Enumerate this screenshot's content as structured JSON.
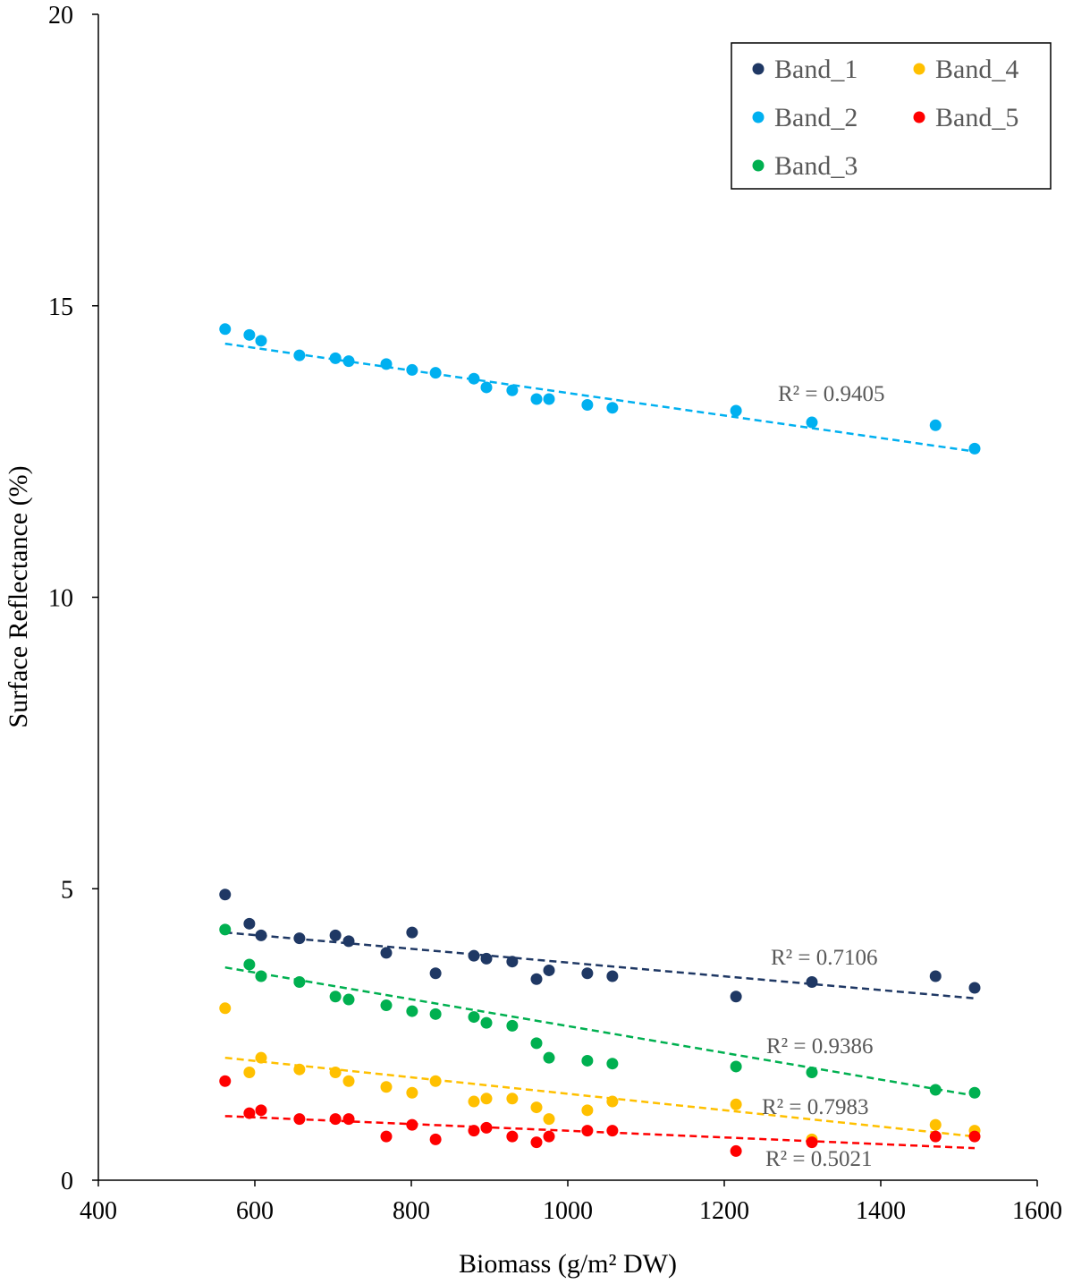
{
  "chart_data": {
    "type": "scatter",
    "title": "",
    "xlabel": "Biomass (g/m² DW)",
    "ylabel": "Surface Reflectance (%)",
    "xlim": [
      400,
      1600
    ],
    "ylim": [
      0,
      20
    ],
    "xticks": [
      400,
      600,
      800,
      1000,
      1200,
      1400,
      1600
    ],
    "yticks": [
      0,
      5,
      10,
      15,
      20
    ],
    "grid": false,
    "legend_position": "top-right",
    "trendline": "linear, dashed",
    "series": [
      {
        "name": "Band_1",
        "color": "#1F3864",
        "r2_label": "R² = 0.7106",
        "trend": [
          [
            562,
            4.25
          ],
          [
            1520,
            3.12
          ]
        ],
        "points": [
          [
            562,
            4.9
          ],
          [
            593,
            4.4
          ],
          [
            608,
            4.2
          ],
          [
            657,
            4.15
          ],
          [
            703,
            4.2
          ],
          [
            720,
            4.1
          ],
          [
            768,
            3.9
          ],
          [
            801,
            4.25
          ],
          [
            831,
            3.55
          ],
          [
            880,
            3.85
          ],
          [
            896,
            3.8
          ],
          [
            929,
            3.75
          ],
          [
            960,
            3.45
          ],
          [
            976,
            3.6
          ],
          [
            1025,
            3.55
          ],
          [
            1057,
            3.5
          ],
          [
            1215,
            3.15
          ],
          [
            1312,
            3.4
          ],
          [
            1470,
            3.5
          ],
          [
            1520,
            3.3
          ]
        ]
      },
      {
        "name": "Band_2",
        "color": "#00B0F0",
        "r2_label": "R² = 0.9405",
        "trend": [
          [
            562,
            14.35
          ],
          [
            1520,
            12.5
          ]
        ],
        "points": [
          [
            562,
            14.6
          ],
          [
            593,
            14.5
          ],
          [
            608,
            14.4
          ],
          [
            657,
            14.15
          ],
          [
            703,
            14.1
          ],
          [
            720,
            14.05
          ],
          [
            768,
            14.0
          ],
          [
            801,
            13.9
          ],
          [
            831,
            13.85
          ],
          [
            880,
            13.75
          ],
          [
            896,
            13.6
          ],
          [
            929,
            13.55
          ],
          [
            960,
            13.4
          ],
          [
            976,
            13.4
          ],
          [
            1025,
            13.3
          ],
          [
            1057,
            13.25
          ],
          [
            1215,
            13.2
          ],
          [
            1312,
            13.0
          ],
          [
            1470,
            12.95
          ],
          [
            1520,
            12.55
          ]
        ]
      },
      {
        "name": "Band_3",
        "color": "#00B050",
        "r2_label": "R² = 0.9386",
        "trend": [
          [
            562,
            3.65
          ],
          [
            1520,
            1.45
          ]
        ],
        "points": [
          [
            562,
            4.3
          ],
          [
            593,
            3.7
          ],
          [
            608,
            3.5
          ],
          [
            657,
            3.4
          ],
          [
            703,
            3.15
          ],
          [
            720,
            3.1
          ],
          [
            768,
            3.0
          ],
          [
            801,
            2.9
          ],
          [
            831,
            2.85
          ],
          [
            880,
            2.8
          ],
          [
            896,
            2.7
          ],
          [
            929,
            2.65
          ],
          [
            960,
            2.35
          ],
          [
            976,
            2.1
          ],
          [
            1025,
            2.05
          ],
          [
            1057,
            2.0
          ],
          [
            1215,
            1.95
          ],
          [
            1312,
            1.85
          ],
          [
            1470,
            1.55
          ],
          [
            1520,
            1.5
          ]
        ]
      },
      {
        "name": "Band_4",
        "color": "#FFC000",
        "r2_label": "R² = 0.7983",
        "trend": [
          [
            562,
            2.1
          ],
          [
            1520,
            0.75
          ]
        ],
        "points": [
          [
            562,
            2.95
          ],
          [
            593,
            1.85
          ],
          [
            608,
            2.1
          ],
          [
            657,
            1.9
          ],
          [
            703,
            1.85
          ],
          [
            720,
            1.7
          ],
          [
            768,
            1.6
          ],
          [
            801,
            1.5
          ],
          [
            831,
            1.7
          ],
          [
            880,
            1.35
          ],
          [
            896,
            1.4
          ],
          [
            929,
            1.4
          ],
          [
            960,
            1.25
          ],
          [
            976,
            1.05
          ],
          [
            1025,
            1.2
          ],
          [
            1057,
            1.35
          ],
          [
            1215,
            1.3
          ],
          [
            1312,
            0.7
          ],
          [
            1470,
            0.95
          ],
          [
            1520,
            0.85
          ]
        ]
      },
      {
        "name": "Band_5",
        "color": "#FF0000",
        "r2_label": "R² = 0.5021",
        "trend": [
          [
            562,
            1.1
          ],
          [
            1520,
            0.55
          ]
        ],
        "points": [
          [
            562,
            1.7
          ],
          [
            593,
            1.15
          ],
          [
            608,
            1.2
          ],
          [
            657,
            1.05
          ],
          [
            703,
            1.05
          ],
          [
            720,
            1.05
          ],
          [
            768,
            0.75
          ],
          [
            801,
            0.95
          ],
          [
            831,
            0.7
          ],
          [
            880,
            0.85
          ],
          [
            896,
            0.9
          ],
          [
            929,
            0.75
          ],
          [
            960,
            0.65
          ],
          [
            976,
            0.75
          ],
          [
            1025,
            0.85
          ],
          [
            1057,
            0.85
          ],
          [
            1215,
            0.5
          ],
          [
            1312,
            0.65
          ],
          [
            1470,
            0.75
          ],
          [
            1520,
            0.75
          ]
        ]
      }
    ]
  }
}
